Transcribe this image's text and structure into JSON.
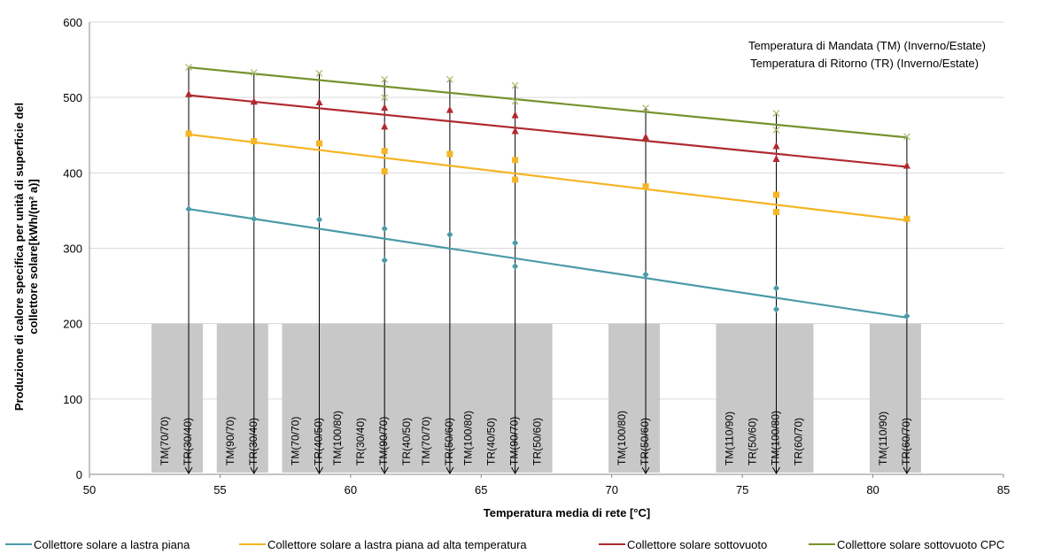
{
  "chart_data": {
    "type": "scatter",
    "xlabel": "Temperatura media di rete [°C]",
    "ylabel": "Produzione di calore specifica per unità di superficie del collettore solare[kWh/(m² a)]",
    "xlim": [
      50,
      85
    ],
    "ylim": [
      0,
      600
    ],
    "xticks": [
      50,
      55,
      60,
      65,
      70,
      75,
      80,
      85
    ],
    "yticks": [
      0,
      100,
      200,
      300,
      400,
      500,
      600
    ],
    "grid": "horizontal",
    "legend_position": "bottom",
    "annotations": [
      "Temperatura di Mandata (TM) (Inverno/Estate)",
      "Temperatura di Ritorno (TR) (Inverno/Estate)"
    ],
    "condition_labels": [
      {
        "x": 53.8,
        "lines": [
          "TM(70/70)",
          "TR(30/40)"
        ]
      },
      {
        "x": 56.3,
        "lines": [
          "TM(90/70)",
          "TR(30/40)"
        ]
      },
      {
        "x": 58.8,
        "lines": [
          "TM(70/70)",
          "TR(40/50)"
        ]
      },
      {
        "x": 61.3,
        "lines": [
          "TM(100/80)",
          "TR(30/40)",
          "TM(90/70)",
          "TR(40/50)"
        ]
      },
      {
        "x": 63.8,
        "lines": [
          "TM(70/70)",
          "TR(50/60)"
        ]
      },
      {
        "x": 66.3,
        "lines": [
          "TM(100/80)",
          "TR(40/50)",
          "TM(90/70)",
          "TR(50/60)"
        ]
      },
      {
        "x": 71.3,
        "lines": [
          "TM(100/80)",
          "TR(50/60)"
        ]
      },
      {
        "x": 76.3,
        "lines": [
          "TM(110/90)",
          "TR(50/60)",
          "TM(100/80)",
          "TR(60/70)"
        ]
      },
      {
        "x": 81.3,
        "lines": [
          "TM(110/90)",
          "TR(60/70)"
        ]
      }
    ],
    "series": [
      {
        "name": "Collettore solare a lastra piana",
        "color": "#4a9aa8",
        "marker": "diamond",
        "trend": [
          [
            53.8,
            352
          ],
          [
            81.3,
            208
          ]
        ],
        "points": [
          [
            53.8,
            352
          ],
          [
            56.3,
            339
          ],
          [
            58.8,
            338
          ],
          [
            61.3,
            326
          ],
          [
            61.3,
            284
          ],
          [
            63.8,
            318
          ],
          [
            66.3,
            307
          ],
          [
            66.3,
            276
          ],
          [
            71.3,
            265
          ],
          [
            76.3,
            247
          ],
          [
            76.3,
            219
          ],
          [
            81.3,
            210
          ]
        ]
      },
      {
        "name": "Collettore solare a lastra piana ad alta temperatura",
        "color": "#f5b525",
        "marker": "square",
        "trend": [
          [
            53.8,
            451
          ],
          [
            81.3,
            337
          ]
        ],
        "points": [
          [
            53.8,
            452
          ],
          [
            56.3,
            442
          ],
          [
            58.8,
            439
          ],
          [
            61.3,
            429
          ],
          [
            61.3,
            402
          ],
          [
            63.8,
            425
          ],
          [
            66.3,
            417
          ],
          [
            66.3,
            391
          ],
          [
            71.3,
            382
          ],
          [
            76.3,
            371
          ],
          [
            76.3,
            348
          ],
          [
            81.3,
            339
          ]
        ]
      },
      {
        "name": "Collettore solare sottovuoto",
        "color": "#b02a30",
        "marker": "triangle",
        "trend": [
          [
            53.8,
            503
          ],
          [
            81.3,
            408
          ]
        ],
        "points": [
          [
            53.8,
            504
          ],
          [
            56.3,
            494
          ],
          [
            58.8,
            493
          ],
          [
            61.3,
            486
          ],
          [
            61.3,
            461
          ],
          [
            63.8,
            483
          ],
          [
            66.3,
            476
          ],
          [
            66.3,
            455
          ],
          [
            71.3,
            447
          ],
          [
            76.3,
            435
          ],
          [
            76.3,
            418
          ],
          [
            81.3,
            409
          ]
        ]
      },
      {
        "name": "Collettore solare sottovuoto CPC",
        "color": "#76922e",
        "marker": "x",
        "trend": [
          [
            53.8,
            540
          ],
          [
            81.3,
            447
          ]
        ],
        "points": [
          [
            53.8,
            540
          ],
          [
            56.3,
            533
          ],
          [
            58.8,
            532
          ],
          [
            61.3,
            524
          ],
          [
            61.3,
            500
          ],
          [
            63.8,
            524
          ],
          [
            66.3,
            516
          ],
          [
            66.3,
            495
          ],
          [
            71.3,
            486
          ],
          [
            76.3,
            479
          ],
          [
            76.3,
            457
          ],
          [
            81.3,
            448
          ]
        ]
      }
    ]
  }
}
